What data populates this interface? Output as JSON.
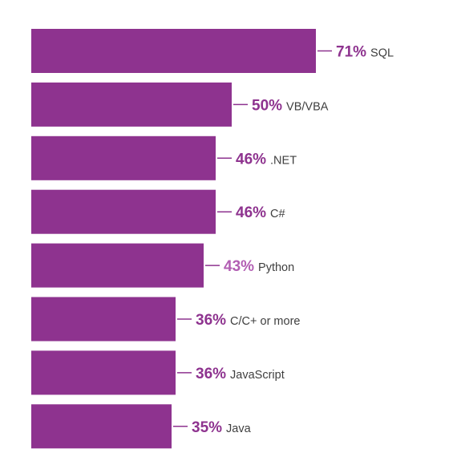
{
  "chart_data": {
    "type": "bar",
    "orientation": "horizontal",
    "categories": [
      "SQL",
      "VB/VBA",
      ".NET",
      "C#",
      "Python",
      "C/C+ or more",
      "JavaScript",
      "Java"
    ],
    "values": [
      71,
      50,
      46,
      46,
      43,
      36,
      36,
      35
    ],
    "value_labels": [
      "71%",
      "50%",
      "46%",
      "46%",
      "43%",
      "36%",
      "36%",
      "35%"
    ],
    "unit": "%",
    "title": "",
    "xlabel": "",
    "ylabel": "",
    "xlim": [
      0,
      100
    ],
    "grid": false,
    "legend": "none",
    "colors": {
      "bar": "#8e338f",
      "value_text": "#8e338f",
      "value_text_alt": "#b25eb3",
      "leader_line": "#8e338f",
      "label_text": "#3f3f3f"
    }
  }
}
